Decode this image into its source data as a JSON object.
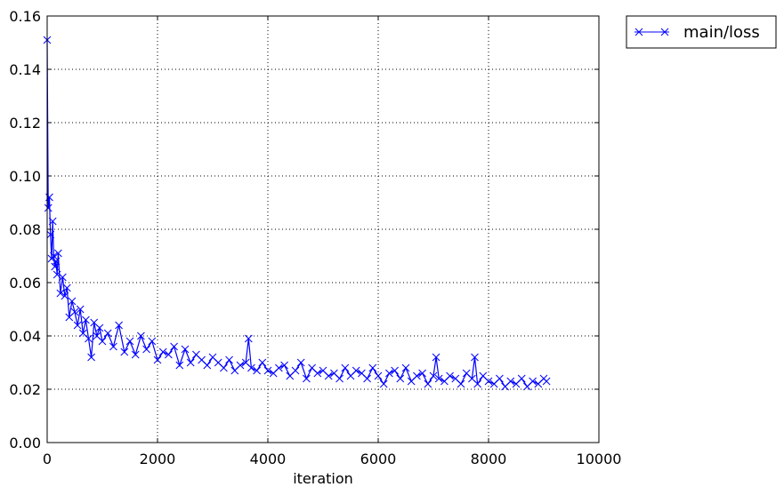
{
  "chart_data": {
    "type": "line",
    "title": "",
    "xlabel": "iteration",
    "ylabel": "",
    "xlim": [
      0,
      10000
    ],
    "ylim": [
      0.0,
      0.16
    ],
    "x_ticks": [
      "0",
      "2000",
      "4000",
      "6000",
      "8000",
      "10000"
    ],
    "y_ticks": [
      "0.00",
      "0.02",
      "0.04",
      "0.06",
      "0.08",
      "0.10",
      "0.12",
      "0.14",
      "0.16"
    ],
    "grid": true,
    "legend_position": "outside-top-right",
    "marker": "x",
    "series": [
      {
        "name": "main/loss",
        "color": "#0000ff",
        "x": [
          0,
          20,
          40,
          60,
          80,
          100,
          120,
          140,
          160,
          180,
          200,
          240,
          280,
          320,
          360,
          400,
          450,
          500,
          550,
          600,
          650,
          700,
          750,
          800,
          850,
          900,
          950,
          1000,
          1100,
          1200,
          1300,
          1400,
          1500,
          1600,
          1700,
          1800,
          1900,
          2000,
          2100,
          2200,
          2300,
          2400,
          2500,
          2600,
          2700,
          2800,
          2900,
          3000,
          3100,
          3200,
          3300,
          3400,
          3500,
          3600,
          3650,
          3700,
          3800,
          3900,
          4000,
          4100,
          4200,
          4300,
          4400,
          4500,
          4600,
          4700,
          4800,
          4900,
          5000,
          5100,
          5200,
          5300,
          5400,
          5500,
          5600,
          5700,
          5800,
          5900,
          6000,
          6100,
          6200,
          6300,
          6400,
          6500,
          6600,
          6700,
          6800,
          6900,
          7000,
          7050,
          7100,
          7200,
          7300,
          7400,
          7500,
          7600,
          7700,
          7750,
          7800,
          7900,
          8000,
          8100,
          8200,
          8300,
          8400,
          8500,
          8600,
          8700,
          8800,
          8900,
          9000,
          9050
        ],
        "y": [
          0.151,
          0.088,
          0.092,
          0.078,
          0.069,
          0.083,
          0.07,
          0.066,
          0.068,
          0.063,
          0.071,
          0.056,
          0.062,
          0.055,
          0.058,
          0.047,
          0.053,
          0.049,
          0.044,
          0.05,
          0.041,
          0.046,
          0.039,
          0.032,
          0.045,
          0.04,
          0.043,
          0.038,
          0.041,
          0.036,
          0.044,
          0.034,
          0.038,
          0.033,
          0.04,
          0.035,
          0.038,
          0.031,
          0.034,
          0.033,
          0.036,
          0.029,
          0.035,
          0.03,
          0.033,
          0.031,
          0.029,
          0.032,
          0.03,
          0.028,
          0.031,
          0.027,
          0.029,
          0.03,
          0.039,
          0.028,
          0.027,
          0.03,
          0.027,
          0.026,
          0.028,
          0.029,
          0.025,
          0.027,
          0.03,
          0.024,
          0.028,
          0.026,
          0.027,
          0.025,
          0.026,
          0.024,
          0.028,
          0.025,
          0.027,
          0.026,
          0.024,
          0.028,
          0.025,
          0.022,
          0.026,
          0.027,
          0.024,
          0.028,
          0.023,
          0.025,
          0.026,
          0.022,
          0.025,
          0.032,
          0.024,
          0.023,
          0.025,
          0.024,
          0.022,
          0.026,
          0.024,
          0.032,
          0.022,
          0.025,
          0.023,
          0.022,
          0.024,
          0.021,
          0.023,
          0.022,
          0.024,
          0.021,
          0.023,
          0.022,
          0.024,
          0.023
        ]
      }
    ]
  }
}
